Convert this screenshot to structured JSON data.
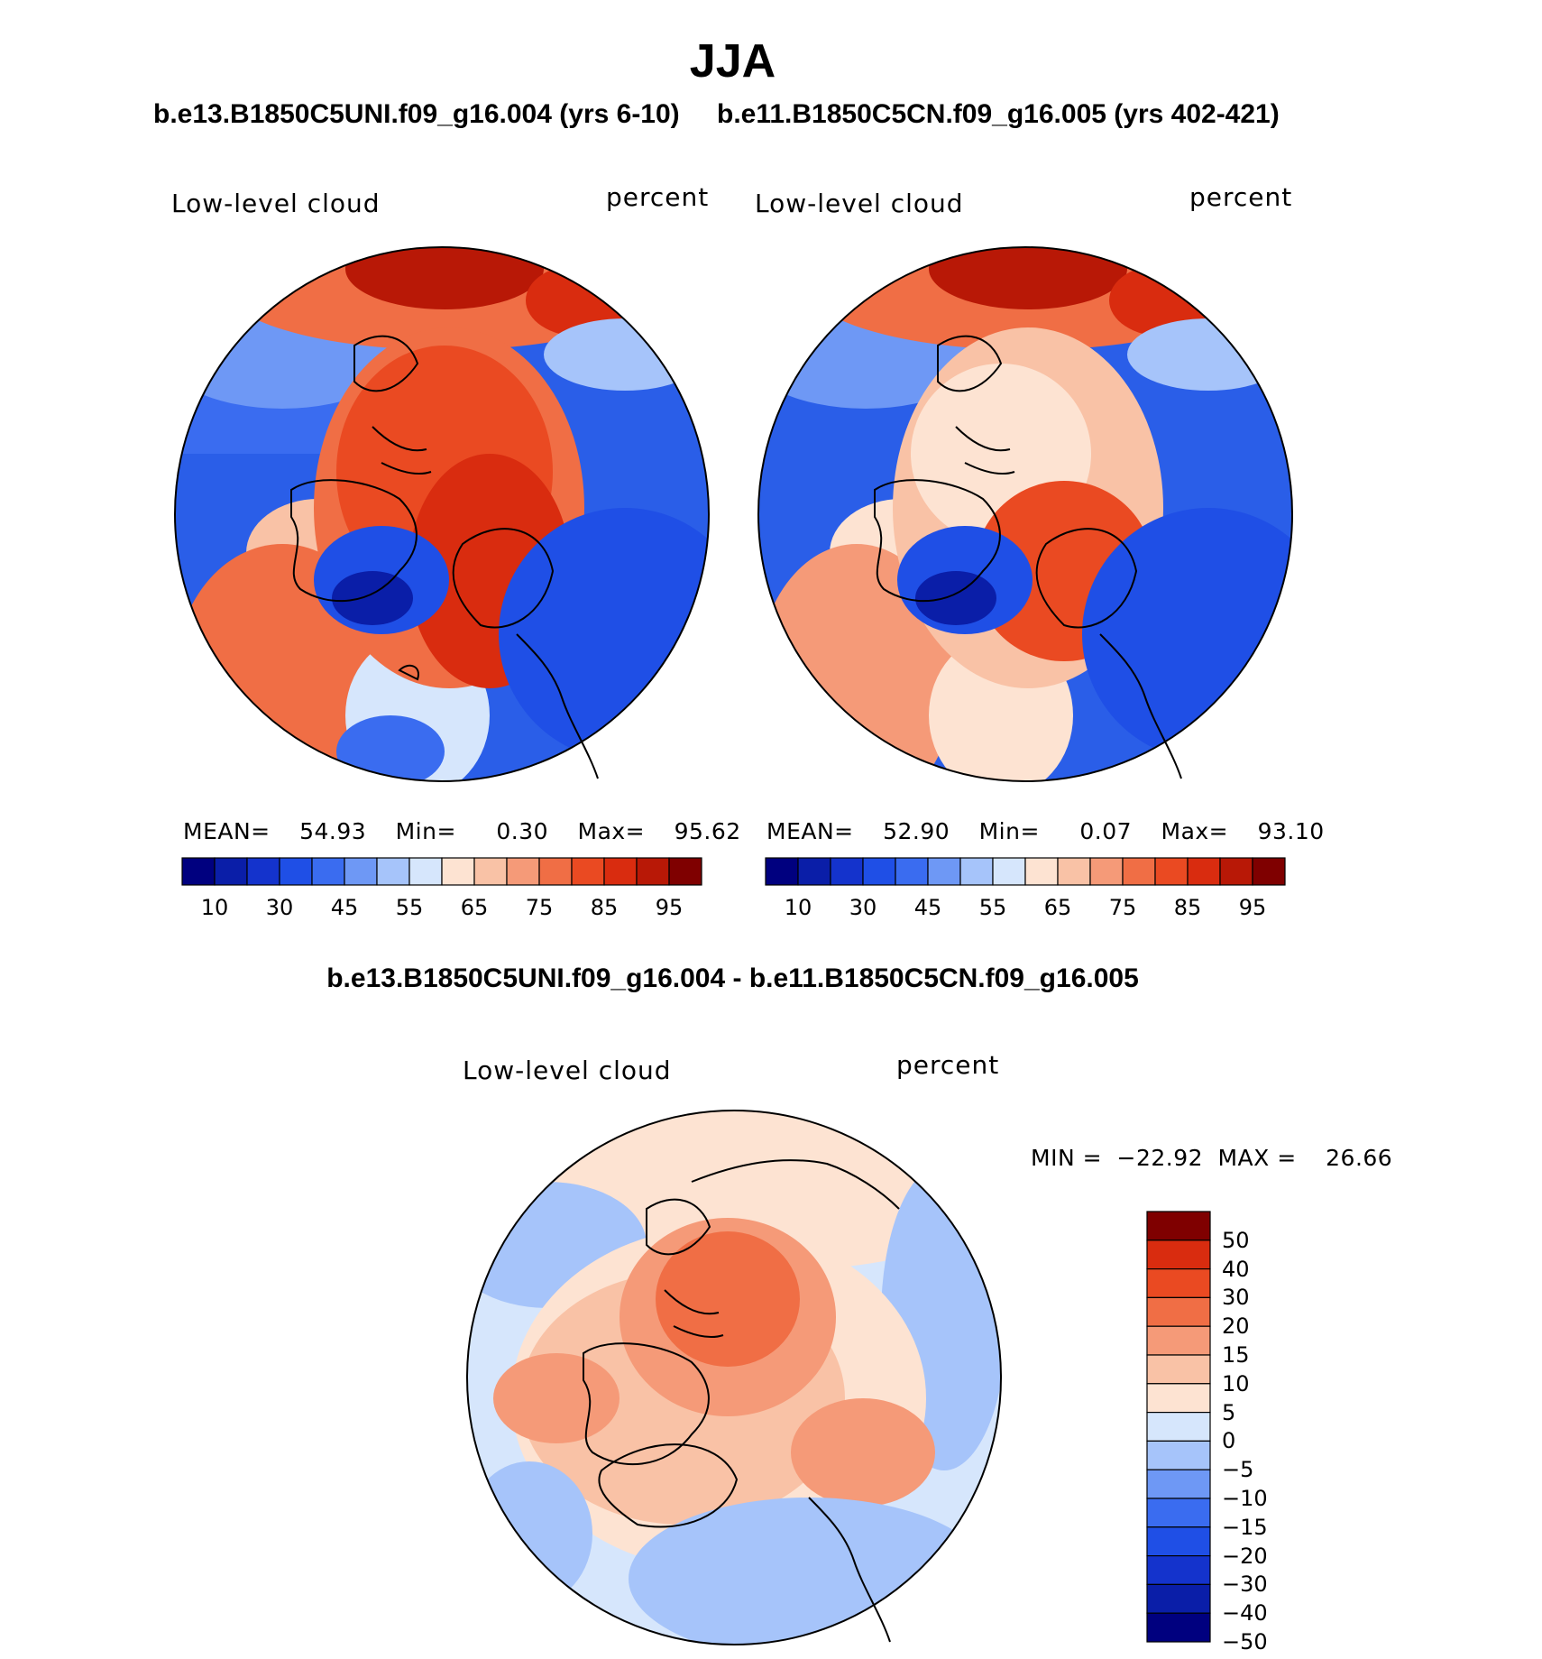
{
  "header": {
    "season": "JJA",
    "case1_title": "b.e13.B1850C5UNI.f09_g16.004 (yrs 6-10)",
    "case2_title": "b.e11.B1850C5CN.f09_g16.005 (yrs 402-421)",
    "diff_title": "b.e13.B1850C5UNI.f09_g16.004 - b.e11.B1850C5CN.f09_g16.005"
  },
  "panels": [
    {
      "id": "case1",
      "variable_label": "Low-level cloud",
      "units_label": "percent",
      "stats": {
        "mean_label": "MEAN=",
        "mean": "54.93",
        "min_label": "Min=",
        "min": "0.30",
        "max_label": "Max=",
        "max": "95.62"
      },
      "colorbar_ticks": [
        "10",
        "30",
        "45",
        "55",
        "65",
        "75",
        "85",
        "95"
      ]
    },
    {
      "id": "case2",
      "variable_label": "Low-level cloud",
      "units_label": "percent",
      "stats": {
        "mean_label": "MEAN=",
        "mean": "52.90",
        "min_label": "Min=",
        "min": "0.07",
        "max_label": "Max=",
        "max": "93.10"
      },
      "colorbar_ticks": [
        "10",
        "30",
        "45",
        "55",
        "65",
        "75",
        "85",
        "95"
      ]
    }
  ],
  "diff_panel": {
    "variable_label": "Low-level cloud",
    "units_label": "percent",
    "stats": {
      "min_label": "MIN =",
      "min": "−22.92",
      "max_label": "MAX =",
      "max": "26.66"
    },
    "colorbar_ticks": [
      "50",
      "40",
      "30",
      "20",
      "15",
      "10",
      "5",
      "0",
      "−5",
      "−10",
      "−15",
      "−20",
      "−30",
      "−40",
      "−50"
    ]
  },
  "colors": {
    "abs_palette": [
      "#00007f",
      "#0a1ea8",
      "#1433cc",
      "#1f4fe6",
      "#3a6cf0",
      "#6e98f5",
      "#a6c4fa",
      "#d6e6fc",
      "#fde3d2",
      "#f9c2a6",
      "#f59a78",
      "#f06e45",
      "#ea4a22",
      "#d92c0f",
      "#b81806",
      "#7f0000"
    ],
    "diff_palette": [
      "#00007f",
      "#0a1ea8",
      "#1433cc",
      "#1f4fe6",
      "#3a6cf0",
      "#6e98f5",
      "#a6c4fa",
      "#d6e6fc",
      "#fde3d2",
      "#f9c2a6",
      "#f59a78",
      "#f06e45",
      "#ea4a22",
      "#d92c0f",
      "#7f0000"
    ],
    "coastline": "#000000"
  }
}
